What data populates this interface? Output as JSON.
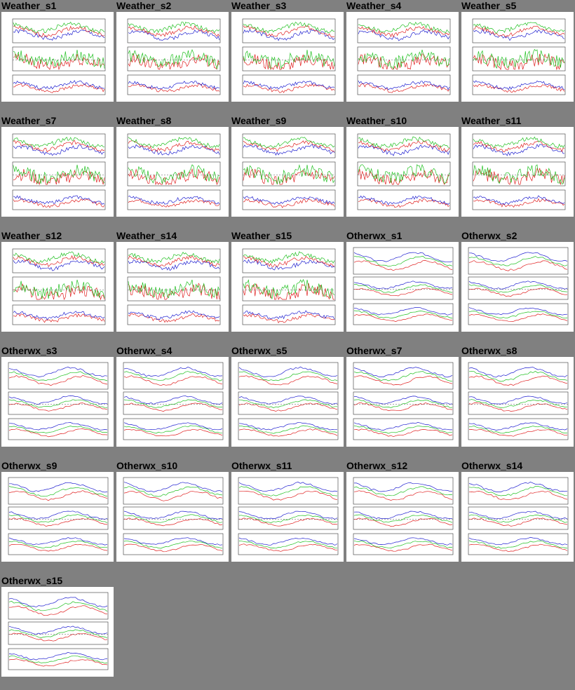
{
  "thumbnails": [
    {
      "label": "Weather_s1",
      "kind": "weather"
    },
    {
      "label": "Weather_s2",
      "kind": "weather"
    },
    {
      "label": "Weather_s3",
      "kind": "weather"
    },
    {
      "label": "Weather_s4",
      "kind": "weather"
    },
    {
      "label": "Weather_s5",
      "kind": "weather"
    },
    {
      "label": "Weather_s7",
      "kind": "weather"
    },
    {
      "label": "Weather_s8",
      "kind": "weather"
    },
    {
      "label": "Weather_s9",
      "kind": "weather"
    },
    {
      "label": "Weather_s10",
      "kind": "weather"
    },
    {
      "label": "Weather_s11",
      "kind": "weather"
    },
    {
      "label": "Weather_s12",
      "kind": "weather"
    },
    {
      "label": "Weather_s14",
      "kind": "weather"
    },
    {
      "label": "Weather_s15",
      "kind": "weather"
    },
    {
      "label": "Otherwx_s1",
      "kind": "otherwx"
    },
    {
      "label": "Otherwx_s2",
      "kind": "otherwx"
    },
    {
      "label": "Otherwx_s3",
      "kind": "otherwx"
    },
    {
      "label": "Otherwx_s4",
      "kind": "otherwx"
    },
    {
      "label": "Otherwx_s5",
      "kind": "otherwx"
    },
    {
      "label": "Otherwx_s7",
      "kind": "otherwx"
    },
    {
      "label": "Otherwx_s8",
      "kind": "otherwx"
    },
    {
      "label": "Otherwx_s9",
      "kind": "otherwx"
    },
    {
      "label": "Otherwx_s10",
      "kind": "otherwx"
    },
    {
      "label": "Otherwx_s11",
      "kind": "otherwx"
    },
    {
      "label": "Otherwx_s12",
      "kind": "otherwx"
    },
    {
      "label": "Otherwx_s14",
      "kind": "otherwx"
    },
    {
      "label": "Otherwx_s15",
      "kind": "otherwx"
    }
  ],
  "colors": {
    "page_background": "#808080",
    "thumb_background": "#ffffff",
    "red": "#e02020",
    "green": "#20c020",
    "blue": "#2020d0",
    "cyan": "#20c0e0",
    "magenta": "#e020e0"
  }
}
